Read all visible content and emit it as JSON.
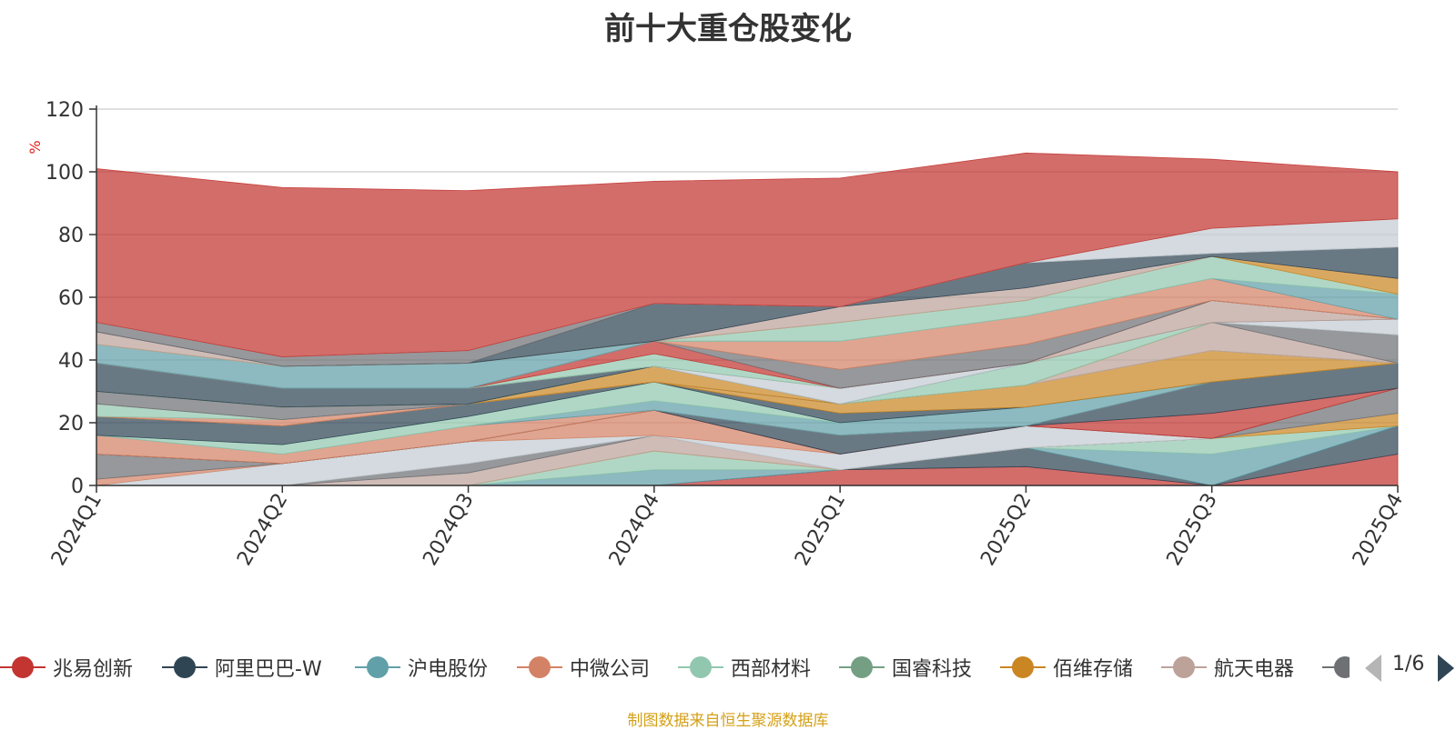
{
  "chart_data": {
    "type": "area",
    "title": "前十大重仓股变化",
    "ylabel": "%",
    "ylim": [
      0,
      120
    ],
    "yticks": [
      0,
      20,
      40,
      60,
      80,
      100,
      120
    ],
    "categories": [
      "2024Q1",
      "2024Q2",
      "2024Q3",
      "2024Q4",
      "2025Q1",
      "2025Q2",
      "2025Q3",
      "2025Q4"
    ],
    "stacked": true,
    "grid": true,
    "legend_position": "bottom",
    "series": [
      {
        "name": "兆易创新",
        "color": "#c23531",
        "values": [
          0,
          0,
          0,
          0,
          5,
          6,
          0,
          10
        ]
      },
      {
        "name": "",
        "color": "#2f4554",
        "values": [
          0,
          0,
          0,
          0,
          0,
          6,
          0,
          9
        ]
      },
      {
        "name": "",
        "color": "#61a0a8",
        "values": [
          0,
          0,
          0,
          5,
          0,
          0,
          10,
          0
        ]
      },
      {
        "name": "",
        "color": "#91c7ae",
        "values": [
          0,
          0,
          0,
          6,
          0,
          0,
          5,
          0
        ]
      },
      {
        "name": "",
        "color": "#ca8622",
        "values": [
          0,
          0,
          0,
          0,
          0,
          0,
          0,
          4
        ]
      },
      {
        "name": "",
        "color": "#bda29a",
        "values": [
          0,
          0,
          4,
          5,
          0,
          0,
          0,
          0
        ]
      },
      {
        "name": "",
        "color": "#6e7074",
        "values": [
          0,
          0,
          3,
          0,
          0,
          0,
          0,
          8
        ]
      },
      {
        "name": "",
        "color": "#c4ccd3",
        "values": [
          0,
          7,
          7,
          0,
          5,
          7,
          0,
          0
        ]
      },
      {
        "name": "",
        "color": "#d48265",
        "values": [
          2,
          0,
          0,
          8,
          0,
          0,
          0,
          0
        ]
      },
      {
        "name": "",
        "color": "#6e7074",
        "values": [
          8,
          0,
          0,
          0,
          0,
          0,
          0,
          0
        ]
      },
      {
        "name": "",
        "color": "#c23531",
        "values": [
          0,
          0,
          0,
          0,
          0,
          0,
          8,
          0
        ]
      },
      {
        "name": "",
        "color": "#2f4554",
        "values": [
          0,
          0,
          0,
          0,
          6,
          0,
          10,
          8
        ]
      },
      {
        "name": "",
        "color": "#d48265",
        "values": [
          6,
          3,
          5,
          0,
          0,
          0,
          0,
          0
        ]
      },
      {
        "name": "",
        "color": "#61a0a8",
        "values": [
          0,
          0,
          0,
          3,
          4,
          6,
          0,
          0
        ]
      },
      {
        "name": "",
        "color": "#91c7ae",
        "values": [
          0,
          3,
          3,
          6,
          0,
          0,
          0,
          0
        ]
      },
      {
        "name": "",
        "color": "#2f4554",
        "values": [
          6,
          6,
          4,
          0,
          3,
          0,
          0,
          0
        ]
      },
      {
        "name": "",
        "color": "#ca8622",
        "values": [
          0,
          0,
          0,
          0,
          3,
          7,
          10,
          0
        ]
      },
      {
        "name": "",
        "color": "#d48265",
        "values": [
          0,
          2,
          0,
          0,
          0,
          0,
          0,
          0
        ]
      },
      {
        "name": "",
        "color": "#91c7ae",
        "values": [
          4,
          0,
          0,
          0,
          0,
          0,
          0,
          0
        ]
      },
      {
        "name": "",
        "color": "#bda29a",
        "values": [
          0,
          0,
          0,
          0,
          0,
          0,
          9,
          0
        ]
      },
      {
        "name": "",
        "color": "#6e7074",
        "values": [
          4,
          4,
          0,
          0,
          0,
          0,
          0,
          9
        ]
      },
      {
        "name": "",
        "color": "#ca8622",
        "values": [
          0,
          0,
          0,
          5,
          0,
          0,
          0,
          0
        ]
      },
      {
        "name": "",
        "color": "#91c7ae",
        "values": [
          0,
          0,
          0,
          0,
          0,
          7,
          0,
          0
        ]
      },
      {
        "name": "",
        "color": "#2f4554",
        "values": [
          9,
          6,
          5,
          0,
          0,
          0,
          0,
          0
        ]
      },
      {
        "name": "",
        "color": "#c4ccd3",
        "values": [
          0,
          0,
          0,
          0,
          5,
          0,
          0,
          5
        ]
      },
      {
        "name": "",
        "color": "#6e7074",
        "values": [
          0,
          0,
          0,
          0,
          0,
          0,
          0,
          0
        ]
      },
      {
        "name": "",
        "color": "#bda29a",
        "values": [
          0,
          0,
          0,
          0,
          0,
          0,
          7,
          0
        ]
      },
      {
        "name": "",
        "color": "#91c7ae",
        "values": [
          0,
          0,
          0,
          4,
          0,
          0,
          0,
          0
        ]
      },
      {
        "name": "",
        "color": "#c23531",
        "values": [
          0,
          0,
          0,
          4,
          0,
          0,
          0,
          0
        ]
      },
      {
        "name": "",
        "color": "#6e7074",
        "values": [
          0,
          0,
          0,
          0,
          6,
          6,
          0,
          0
        ]
      },
      {
        "name": "",
        "color": "#d48265",
        "values": [
          0,
          0,
          0,
          0,
          9,
          9,
          7,
          0
        ]
      },
      {
        "name": "",
        "color": "#61a0a8",
        "values": [
          6,
          7,
          8,
          0,
          0,
          0,
          0,
          8
        ]
      },
      {
        "name": "",
        "color": "#91c7ae",
        "values": [
          0,
          0,
          0,
          0,
          6,
          5,
          7,
          0
        ]
      },
      {
        "name": "",
        "color": "#ca8622",
        "values": [
          0,
          0,
          0,
          0,
          0,
          0,
          0,
          5
        ]
      },
      {
        "name": "",
        "color": "#bda29a",
        "values": [
          4,
          0,
          0,
          0,
          5,
          4,
          0,
          0
        ]
      },
      {
        "name": "",
        "color": "#2f4554",
        "values": [
          0,
          0,
          0,
          12,
          0,
          8,
          1,
          10
        ]
      },
      {
        "name": "",
        "color": "#6e7074",
        "values": [
          3,
          3,
          4,
          0,
          0,
          0,
          0,
          0
        ]
      },
      {
        "name": "",
        "color": "#c4ccd3",
        "values": [
          0,
          0,
          0,
          0,
          0,
          0,
          8,
          9
        ]
      },
      {
        "name": "",
        "color": "#c23531",
        "values": [
          49,
          54,
          51,
          39,
          41,
          35,
          22,
          15
        ]
      }
    ]
  },
  "legend": {
    "items": [
      {
        "label": "兆易创新",
        "color": "#c23531"
      },
      {
        "label": "阿里巴巴-W",
        "color": "#2f4554"
      },
      {
        "label": "沪电股份",
        "color": "#61a0a8"
      },
      {
        "label": "中微公司",
        "color": "#d48265"
      },
      {
        "label": "西部材料",
        "color": "#91c7ae"
      },
      {
        "label": "国睿科技",
        "color": "#749f83"
      },
      {
        "label": "佰维存储",
        "color": "#ca8622"
      },
      {
        "label": "航天电器",
        "color": "#bda29a"
      },
      {
        "label": "",
        "color": "#6e7074"
      }
    ],
    "page": "1/6"
  },
  "source_note": "制图数据来自恒生聚源数据库"
}
